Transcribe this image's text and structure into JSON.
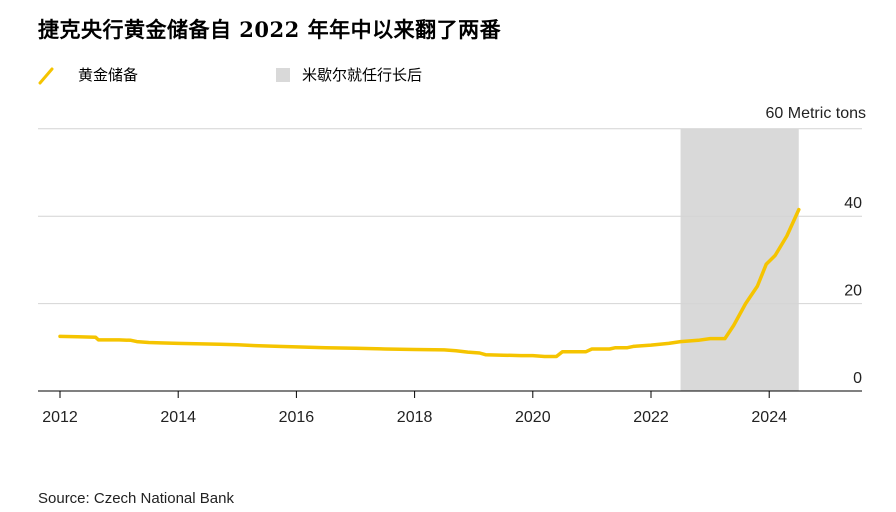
{
  "chart_data": {
    "type": "line",
    "title": "捷克央行黄金储备自 2022 年年中以来翻了两番",
    "unit_label": "60 Metric tons",
    "ylim": [
      0,
      60
    ],
    "y_ticks": [
      0,
      20,
      40
    ],
    "xlim": [
      2012,
      2025.6
    ],
    "x_ticks": [
      "2012",
      "2014",
      "2016",
      "2018",
      "2020",
      "2022",
      "2024"
    ],
    "grid": "horizontal",
    "legend": [
      {
        "label": "黄金储备",
        "kind": "line",
        "color": "#f5c400"
      },
      {
        "label": "米歇尔就任行长后",
        "kind": "shade",
        "color": "#d9d9d9"
      }
    ],
    "shaded_period": {
      "start": 2022.5,
      "end": 2024.5
    },
    "series": [
      {
        "name": "黄金储备",
        "color": "#f5c400",
        "points": [
          [
            2012.0,
            12.5
          ],
          [
            2012.3,
            12.4
          ],
          [
            2012.6,
            12.3
          ],
          [
            2012.65,
            11.7
          ],
          [
            2013.0,
            11.7
          ],
          [
            2013.2,
            11.6
          ],
          [
            2013.3,
            11.3
          ],
          [
            2013.5,
            11.1
          ],
          [
            2013.7,
            11.0
          ],
          [
            2014.0,
            10.9
          ],
          [
            2014.3,
            10.8
          ],
          [
            2014.7,
            10.7
          ],
          [
            2015.0,
            10.6
          ],
          [
            2015.3,
            10.4
          ],
          [
            2015.7,
            10.2
          ],
          [
            2016.0,
            10.1
          ],
          [
            2016.5,
            9.9
          ],
          [
            2017.0,
            9.8
          ],
          [
            2017.5,
            9.6
          ],
          [
            2018.0,
            9.5
          ],
          [
            2018.5,
            9.4
          ],
          [
            2018.7,
            9.2
          ],
          [
            2018.9,
            8.9
          ],
          [
            2019.1,
            8.7
          ],
          [
            2019.2,
            8.3
          ],
          [
            2019.5,
            8.2
          ],
          [
            2019.8,
            8.1
          ],
          [
            2020.0,
            8.1
          ],
          [
            2020.2,
            7.9
          ],
          [
            2020.4,
            7.9
          ],
          [
            2020.5,
            9.0
          ],
          [
            2020.9,
            9.0
          ],
          [
            2021.0,
            9.6
          ],
          [
            2021.3,
            9.6
          ],
          [
            2021.4,
            9.9
          ],
          [
            2021.6,
            9.9
          ],
          [
            2021.7,
            10.2
          ],
          [
            2022.0,
            10.5
          ],
          [
            2022.3,
            10.9
          ],
          [
            2022.5,
            11.3
          ],
          [
            2022.8,
            11.6
          ],
          [
            2023.0,
            12.0
          ],
          [
            2023.25,
            12.0
          ],
          [
            2023.4,
            15.0
          ],
          [
            2023.6,
            20.0
          ],
          [
            2023.8,
            24.0
          ],
          [
            2023.95,
            29.0
          ],
          [
            2024.1,
            31.0
          ],
          [
            2024.3,
            35.5
          ],
          [
            2024.5,
            41.5
          ]
        ]
      }
    ]
  },
  "source": "Source: Czech National Bank"
}
